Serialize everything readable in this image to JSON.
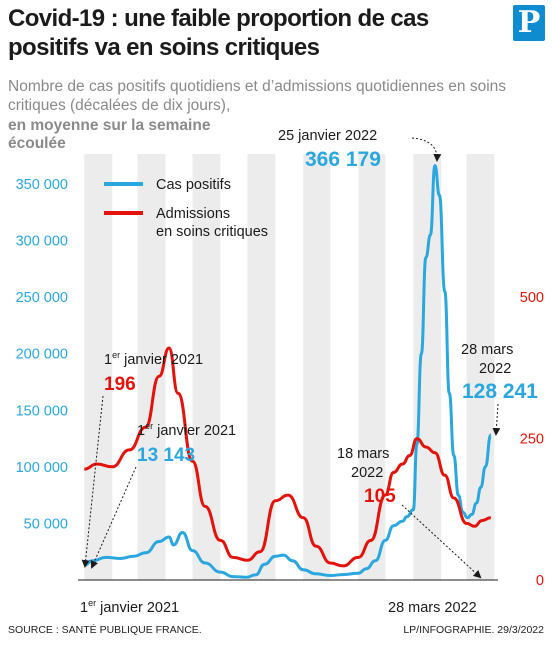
{
  "header": {
    "title": "Covid-19 : une faible proportion de cas positifs va en soins critiques",
    "logo_letter": "P",
    "subtitle": "Nombre de cas positifs quotidiens et d’admissions quotidiennes en soins critiques (décalées de dix jours),",
    "subtitle_bold": "en moyenne sur la semaine écoulée"
  },
  "chart_data": {
    "type": "line",
    "x_range": [
      "2020-12-25",
      "2022-04-05"
    ],
    "x_tick_labels": [
      "1er janvier 2021",
      "28 mars 2022"
    ],
    "y_left": {
      "ticks": [
        "350 000",
        "300 000",
        "250 000",
        "200 000",
        "150 000",
        "100 000",
        "50 000"
      ],
      "range": [
        0,
        380000
      ]
    },
    "y_right": {
      "ticks": [
        "500",
        "250",
        "0"
      ],
      "range": [
        0,
        760
      ]
    },
    "legend": [
      {
        "label": "Cas positifs",
        "color": "#2aa7de"
      },
      {
        "label_line1": "Admissions",
        "label_line2": "en soins critiques",
        "color": "#e3120b"
      }
    ],
    "series": [
      {
        "name": "Cas positifs",
        "axis": "left",
        "color": "#2aa7de",
        "x": [
          "2021-01-01",
          "2021-01-10",
          "2021-01-25",
          "2021-02-10",
          "2021-02-25",
          "2021-03-10",
          "2021-03-25",
          "2021-04-05",
          "2021-04-10",
          "2021-04-20",
          "2021-05-01",
          "2021-05-15",
          "2021-06-01",
          "2021-06-15",
          "2021-06-30",
          "2021-07-10",
          "2021-07-20",
          "2021-08-01",
          "2021-08-10",
          "2021-08-20",
          "2021-09-01",
          "2021-09-15",
          "2021-10-01",
          "2021-10-15",
          "2021-11-01",
          "2021-11-10",
          "2021-11-20",
          "2021-12-01",
          "2021-12-10",
          "2021-12-20",
          "2021-12-25",
          "2022-01-01",
          "2022-01-05",
          "2022-01-10",
          "2022-01-15",
          "2022-01-20",
          "2022-01-25",
          "2022-01-30",
          "2022-02-05",
          "2022-02-10",
          "2022-02-15",
          "2022-02-20",
          "2022-02-25",
          "2022-03-02",
          "2022-03-07",
          "2022-03-12",
          "2022-03-17",
          "2022-03-22",
          "2022-03-28"
        ],
        "y": [
          13143,
          17000,
          20000,
          19000,
          21000,
          24000,
          34000,
          38000,
          31000,
          42000,
          26000,
          15000,
          7000,
          3000,
          2500,
          4500,
          14000,
          21000,
          22000,
          17000,
          9000,
          5500,
          4000,
          4800,
          6000,
          10000,
          17000,
          35000,
          48000,
          52000,
          56000,
          62000,
          120000,
          200000,
          285000,
          305000,
          366179,
          340000,
          255000,
          165000,
          110000,
          75000,
          60000,
          55000,
          58000,
          68000,
          82000,
          100000,
          128241
        ]
      },
      {
        "name": "Admissions en soins critiques",
        "axis": "right",
        "color": "#e3120b",
        "x": [
          "2021-01-01",
          "2021-01-15",
          "2021-02-01",
          "2021-02-20",
          "2021-03-10",
          "2021-03-25",
          "2021-04-05",
          "2021-04-15",
          "2021-05-01",
          "2021-05-15",
          "2021-06-01",
          "2021-06-15",
          "2021-07-01",
          "2021-07-15",
          "2021-08-01",
          "2021-08-15",
          "2021-09-01",
          "2021-09-15",
          "2021-10-01",
          "2021-10-15",
          "2021-11-01",
          "2021-11-15",
          "2021-12-01",
          "2021-12-10",
          "2021-12-20",
          "2021-12-28",
          "2022-01-05",
          "2022-01-15",
          "2022-01-25",
          "2022-02-05",
          "2022-02-15",
          "2022-03-01",
          "2022-03-10",
          "2022-03-18",
          "2022-03-28"
        ],
        "y": [
          196,
          205,
          200,
          230,
          270,
          360,
          410,
          330,
          210,
          130,
          70,
          40,
          35,
          50,
          140,
          150,
          110,
          60,
          30,
          25,
          40,
          70,
          150,
          190,
          205,
          220,
          250,
          235,
          225,
          185,
          145,
          100,
          95,
          105,
          110
        ]
      }
    ]
  },
  "annotations": {
    "left_axis_blue_date": "1er janvier 2021",
    "left_axis_blue_value": "13 143",
    "left_axis_red_date": "1er janvier 2021",
    "left_axis_red_value": "196",
    "peak_date": "25 janvier 2022",
    "peak_value": "366 179",
    "end_blue_date_line1": "28 mars",
    "end_blue_date_line2": "2022",
    "end_blue_value": "128 241",
    "end_red_date_line1": "18 mars",
    "end_red_date_line2": "2022",
    "end_red_value": "105",
    "sup_er": "er",
    "x_start_rest": " janvier 2021",
    "x_start_num": "1"
  },
  "footer": {
    "source": "SOURCE : SANTÉ PUBLIQUE FRANCE.",
    "credit": "LP/INFOGRAPHIE.  29/3/2022"
  }
}
